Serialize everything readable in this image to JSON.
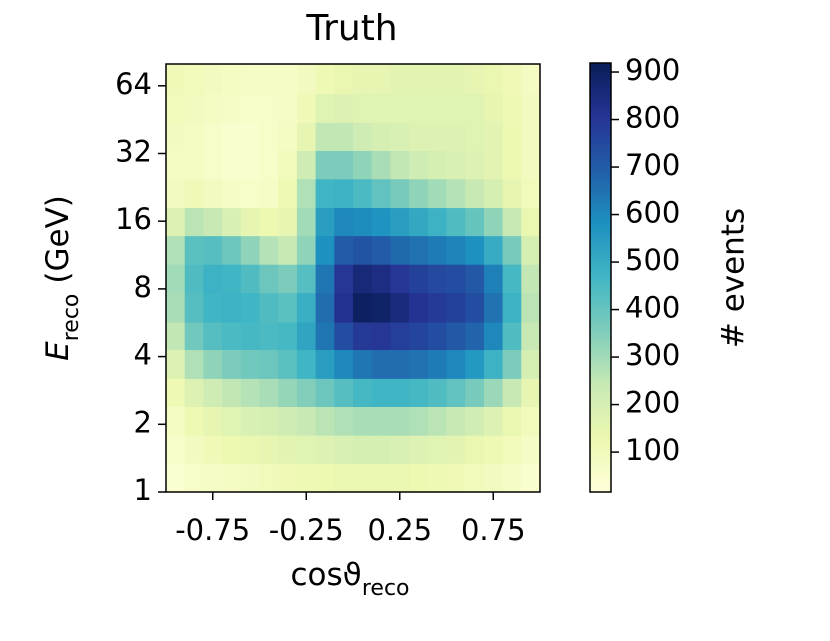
{
  "chart_data": {
    "type": "heatmap",
    "title": "Truth",
    "xlabel": {
      "symbol": "cosϑ",
      "sub": "reco"
    },
    "ylabel": {
      "symbol": "E",
      "sub": "reco",
      "unit": "(GeV)"
    },
    "colorbar_label": "# events",
    "xlim": [
      -1,
      1
    ],
    "ylim": [
      1,
      80
    ],
    "ylog": true,
    "xticks": [
      -0.75,
      -0.25,
      0.25,
      0.75
    ],
    "yticks": [
      1,
      2,
      4,
      8,
      16,
      32,
      64
    ],
    "clim": [
      16,
      919
    ],
    "cticks": [
      100,
      200,
      300,
      400,
      500,
      600,
      700,
      800,
      900
    ],
    "colormap": [
      "#ffffd9",
      "#edf8b1",
      "#c7e9b4",
      "#7fcdbb",
      "#41b6c4",
      "#1d91c0",
      "#225ea8",
      "#253494",
      "#081d58"
    ],
    "x_bins": [
      -1,
      -0.9,
      -0.8,
      -0.7,
      -0.6,
      -0.5,
      -0.4,
      -0.3,
      -0.2,
      -0.1,
      0,
      0.1,
      0.2,
      0.3,
      0.4,
      0.5,
      0.6,
      0.7,
      0.8,
      0.9,
      1
    ],
    "y_bins": [
      1,
      1.34,
      1.79,
      2.4,
      3.2,
      4.3,
      5.7,
      7.7,
      10.3,
      13.8,
      18.4,
      24.7,
      33,
      44,
      59,
      80
    ],
    "z": [
      [
        40,
        60,
        70,
        80,
        90,
        100,
        110,
        120,
        130,
        140,
        140,
        140,
        140,
        130,
        120,
        110,
        100,
        90,
        70,
        50
      ],
      [
        60,
        90,
        110,
        130,
        140,
        150,
        160,
        170,
        180,
        190,
        200,
        200,
        190,
        180,
        170,
        160,
        140,
        120,
        100,
        70
      ],
      [
        80,
        120,
        150,
        170,
        190,
        200,
        220,
        240,
        260,
        280,
        290,
        290,
        290,
        280,
        260,
        240,
        210,
        180,
        140,
        100
      ],
      [
        120,
        180,
        220,
        250,
        270,
        290,
        320,
        350,
        390,
        430,
        460,
        470,
        470,
        460,
        440,
        410,
        370,
        310,
        240,
        150
      ],
      [
        180,
        280,
        330,
        360,
        380,
        390,
        420,
        470,
        540,
        600,
        640,
        660,
        660,
        650,
        630,
        600,
        560,
        480,
        360,
        200
      ],
      [
        250,
        380,
        430,
        450,
        460,
        450,
        460,
        520,
        640,
        740,
        790,
        800,
        780,
        760,
        740,
        710,
        680,
        600,
        440,
        240
      ],
      [
        290,
        430,
        470,
        480,
        470,
        440,
        420,
        490,
        660,
        820,
        900,
        890,
        850,
        810,
        790,
        770,
        740,
        650,
        480,
        260
      ],
      [
        300,
        440,
        480,
        470,
        440,
        390,
        360,
        430,
        640,
        800,
        860,
        840,
        800,
        770,
        750,
        740,
        710,
        620,
        460,
        250
      ],
      [
        280,
        420,
        430,
        390,
        330,
        270,
        240,
        330,
        580,
        700,
        720,
        700,
        670,
        650,
        630,
        610,
        580,
        500,
        370,
        200
      ],
      [
        180,
        260,
        240,
        190,
        150,
        130,
        150,
        300,
        540,
        600,
        590,
        570,
        540,
        510,
        480,
        440,
        400,
        330,
        240,
        140
      ],
      [
        90,
        110,
        90,
        70,
        60,
        70,
        120,
        280,
        470,
        480,
        450,
        410,
        370,
        330,
        300,
        270,
        240,
        200,
        150,
        100
      ],
      [
        80,
        80,
        60,
        50,
        50,
        60,
        100,
        220,
        360,
        360,
        330,
        290,
        250,
        220,
        200,
        190,
        180,
        160,
        130,
        90
      ],
      [
        90,
        80,
        60,
        50,
        50,
        60,
        80,
        150,
        250,
        250,
        220,
        200,
        190,
        180,
        180,
        180,
        170,
        160,
        130,
        90
      ],
      [
        100,
        90,
        80,
        70,
        60,
        60,
        70,
        110,
        170,
        180,
        170,
        170,
        170,
        170,
        170,
        170,
        170,
        150,
        120,
        90
      ],
      [
        110,
        100,
        90,
        80,
        70,
        70,
        70,
        90,
        120,
        140,
        150,
        150,
        160,
        160,
        160,
        160,
        150,
        140,
        110,
        80
      ]
    ]
  }
}
